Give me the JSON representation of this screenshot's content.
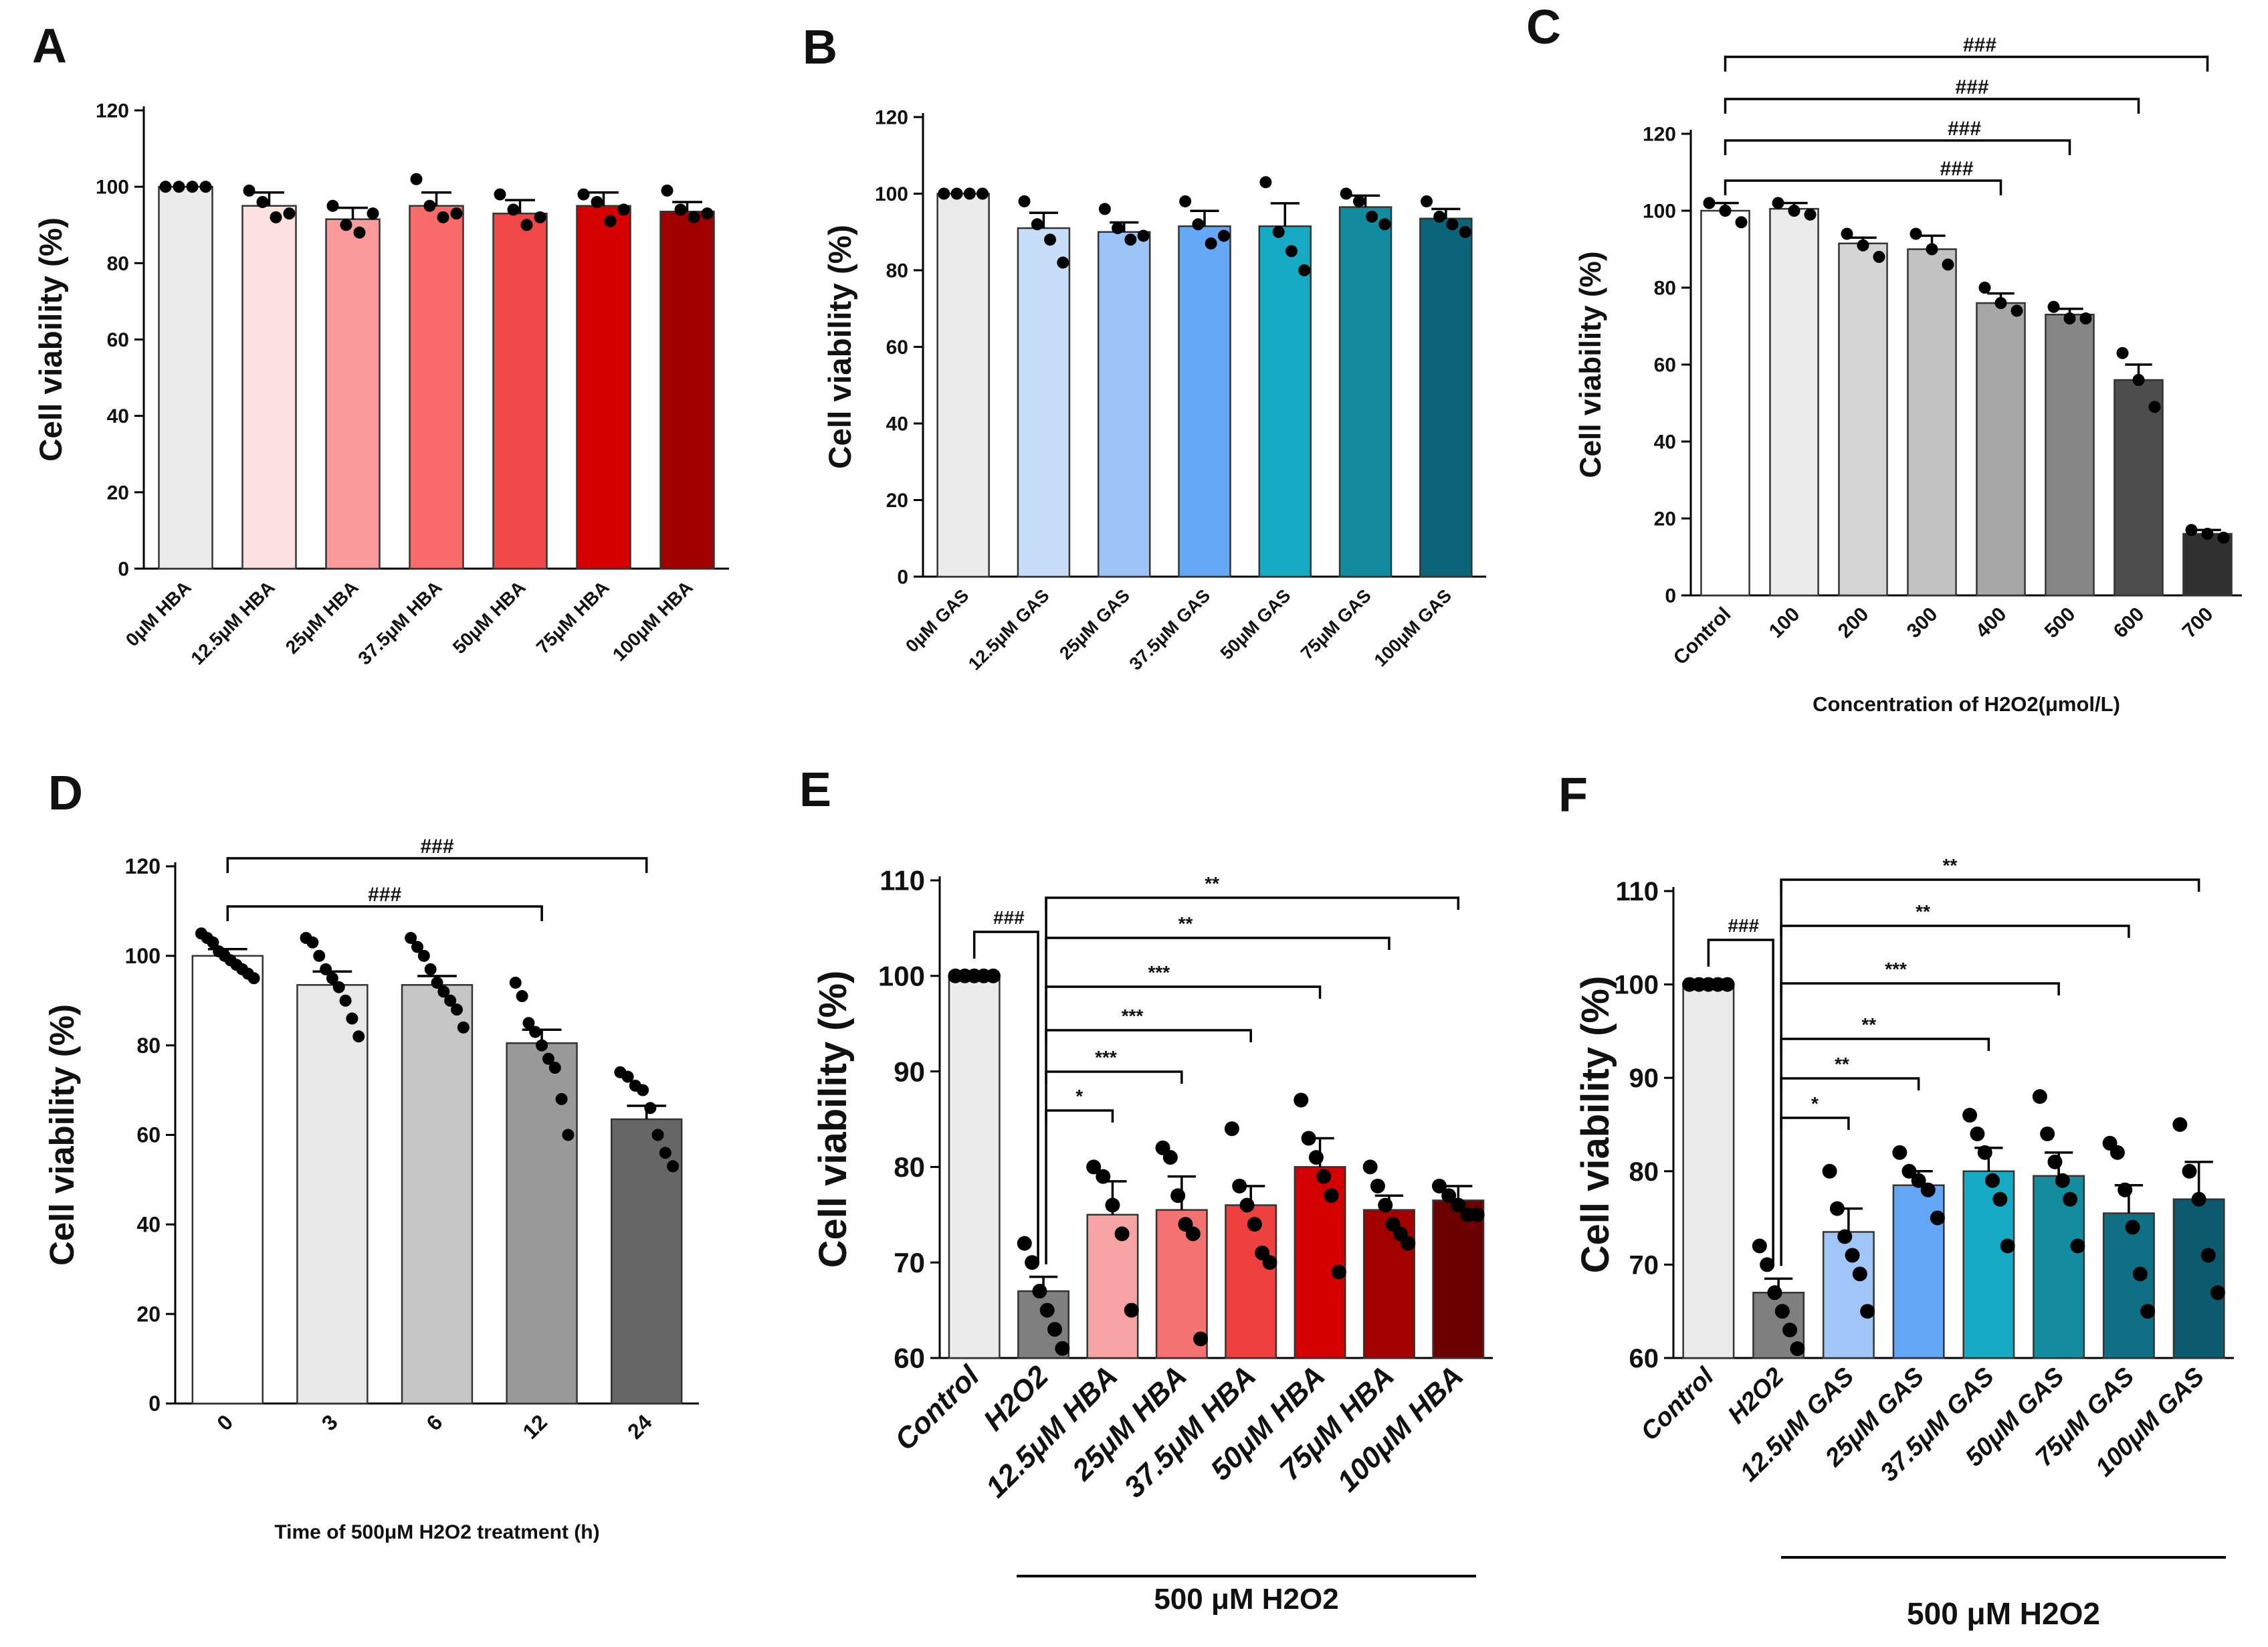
{
  "chart_data": [
    {
      "panel": "A",
      "type": "bar",
      "ylabel": "Cell viability (%)",
      "xlabel": "",
      "ylim": [
        0,
        120
      ],
      "yticks": [
        0,
        20,
        40,
        60,
        80,
        100,
        120
      ],
      "categories": [
        "0μM HBA",
        "12.5μM HBA",
        "25μM HBA",
        "37.5μM HBA",
        "50μM HBA",
        "75μM HBA",
        "100μM HBA"
      ],
      "values": [
        100,
        95,
        91.5,
        95,
        93,
        95,
        93.5
      ],
      "errors": [
        0,
        3.5,
        3,
        3.5,
        3.5,
        3.5,
        2.5
      ],
      "colors": [
        "#ebebeb",
        "#fde0e0",
        "#fa9a9a",
        "#f76b6b",
        "#f04848",
        "#d60000",
        "#a10000"
      ],
      "points": [
        [
          100,
          100,
          100,
          100
        ],
        [
          99,
          96,
          92,
          93
        ],
        [
          95,
          90,
          88,
          93
        ],
        [
          102,
          95,
          92,
          93
        ],
        [
          98,
          94,
          90,
          92
        ],
        [
          98,
          96,
          91,
          94
        ],
        [
          99,
          94,
          92,
          93
        ]
      ],
      "brackets": [],
      "group_label": ""
    },
    {
      "panel": "B",
      "type": "bar",
      "ylabel": "Cell viability (%)",
      "xlabel": "",
      "ylim": [
        0,
        120
      ],
      "yticks": [
        0,
        20,
        40,
        60,
        80,
        100,
        120
      ],
      "categories": [
        "0μM GAS",
        "12.5μM GAS",
        "25μM GAS",
        "37.5μM GAS",
        "50μM GAS",
        "75μM GAS",
        "100μM GAS"
      ],
      "values": [
        100,
        91,
        90,
        91.5,
        91.5,
        96.5,
        93.5
      ],
      "errors": [
        0,
        4,
        2.5,
        4,
        6,
        3,
        2.5
      ],
      "colors": [
        "#ebebeb",
        "#c8ddf8",
        "#9dc4f8",
        "#65a8f5",
        "#17aac4",
        "#138b9f",
        "#0c6478"
      ],
      "points": [
        [
          100,
          100,
          100,
          100
        ],
        [
          98,
          92,
          88,
          82
        ],
        [
          96,
          91,
          88,
          89
        ],
        [
          98,
          92,
          87,
          89
        ],
        [
          103,
          90,
          85,
          80
        ],
        [
          100,
          98,
          94,
          92
        ],
        [
          98,
          94,
          92,
          90
        ]
      ],
      "brackets": [],
      "group_label": ""
    },
    {
      "panel": "C",
      "type": "bar",
      "ylabel": "Cell viability (%)",
      "xlabel": "Concentration of H2O2(μmol/L)",
      "ylim": [
        0,
        120
      ],
      "yticks": [
        0,
        20,
        40,
        60,
        80,
        100,
        120
      ],
      "categories": [
        "Control",
        "100",
        "200",
        "300",
        "400",
        "500",
        "600",
        "700"
      ],
      "values": [
        100,
        100.5,
        91.5,
        90,
        76,
        73,
        56,
        16
      ],
      "errors": [
        2,
        1.5,
        1.5,
        3.5,
        2.5,
        1.5,
        4,
        1
      ],
      "colors": [
        "#ffffff",
        "#ebebeb",
        "#d5d5d5",
        "#c2c2c2",
        "#a6a6a6",
        "#858585",
        "#4d4d4d",
        "#303030"
      ],
      "points": [
        [
          102,
          100,
          97
        ],
        [
          102,
          100,
          99
        ],
        [
          94,
          91,
          88
        ],
        [
          94,
          90,
          86
        ],
        [
          80,
          76,
          74
        ],
        [
          75,
          72,
          72
        ],
        [
          63,
          56,
          49
        ],
        [
          17,
          16,
          15
        ]
      ],
      "brackets": [
        {
          "from": 0,
          "to": 4,
          "label": "###"
        },
        {
          "from": 0,
          "to": 5,
          "label": "###"
        },
        {
          "from": 0,
          "to": 6,
          "label": "###"
        },
        {
          "from": 0,
          "to": 7,
          "label": "###"
        }
      ],
      "group_label": ""
    },
    {
      "panel": "D",
      "type": "bar",
      "ylabel": "Cell viability (%)",
      "xlabel": "Time of 500μM H2O2 treatment (h)",
      "ylim": [
        0,
        120
      ],
      "yticks": [
        0,
        20,
        40,
        60,
        80,
        100,
        120
      ],
      "categories": [
        "0",
        "3",
        "6",
        "12",
        "24"
      ],
      "values": [
        100,
        93.5,
        93.5,
        80.5,
        63.5
      ],
      "errors": [
        1.5,
        3,
        2,
        3,
        3
      ],
      "colors": [
        "#ffffff",
        "#e8e8e8",
        "#c6c6c6",
        "#999999",
        "#666666"
      ],
      "points": [
        [
          105,
          104,
          103,
          101,
          100,
          99,
          98,
          97,
          96,
          95
        ],
        [
          104,
          103,
          100,
          97,
          95,
          93,
          90,
          86,
          82
        ],
        [
          104,
          102,
          100,
          97,
          94,
          92,
          90,
          88,
          84
        ],
        [
          94,
          91,
          85,
          83,
          80,
          77,
          75,
          68,
          60
        ],
        [
          74,
          73,
          71,
          70,
          66,
          60,
          56,
          53
        ]
      ],
      "brackets": [
        {
          "from": 0,
          "to": 3,
          "label": "###"
        },
        {
          "from": 0,
          "to": 4,
          "label": "###"
        }
      ],
      "group_label": ""
    },
    {
      "panel": "E",
      "type": "bar",
      "ylabel": "Cell viability (%)",
      "xlabel": "",
      "ylim": [
        60,
        110
      ],
      "yticks": [
        60,
        70,
        80,
        90,
        100,
        110
      ],
      "categories": [
        "Control",
        "H2O2",
        "12.5μM HBA",
        "25μM HBA",
        "37.5μM HBA",
        "50μM HBA",
        "75μM HBA",
        "100μM HBA"
      ],
      "values": [
        100,
        67,
        75,
        75.5,
        76,
        80,
        75.5,
        76.5
      ],
      "errors": [
        0,
        1.5,
        3.5,
        3.5,
        2,
        3,
        1.5,
        1.5
      ],
      "colors": [
        "#ebebeb",
        "#7f7f7f",
        "#f7a3a3",
        "#f47272",
        "#ef4040",
        "#d40000",
        "#a30000",
        "#6b0000"
      ],
      "points": [
        [
          100,
          100,
          100,
          100,
          100
        ],
        [
          72,
          70,
          67,
          65,
          63,
          61
        ],
        [
          80,
          79,
          76,
          73,
          65
        ],
        [
          82,
          81,
          77,
          74,
          73,
          62
        ],
        [
          84,
          78,
          76,
          74,
          71,
          70
        ],
        [
          87,
          83,
          81,
          79,
          77,
          69
        ],
        [
          80,
          78,
          76,
          74,
          73,
          72
        ],
        [
          78,
          77,
          76,
          75,
          75
        ]
      ],
      "brackets": [
        {
          "from": 0,
          "to": 1,
          "label": "###"
        },
        {
          "from": 1,
          "to": 2,
          "label": "*"
        },
        {
          "from": 1,
          "to": 3,
          "label": "***"
        },
        {
          "from": 1,
          "to": 4,
          "label": "***"
        },
        {
          "from": 1,
          "to": 5,
          "label": "***"
        },
        {
          "from": 1,
          "to": 6,
          "label": "**"
        },
        {
          "from": 1,
          "to": 7,
          "label": "**"
        }
      ],
      "group_label": "500 μM H2O2"
    },
    {
      "panel": "F",
      "type": "bar",
      "ylabel": "Cell viability (%)",
      "xlabel": "",
      "ylim": [
        60,
        110
      ],
      "yticks": [
        60,
        70,
        80,
        90,
        100,
        110
      ],
      "categories": [
        "Control",
        "H2O2",
        "12.5μM GAS",
        "25μM GAS",
        "37.5μM GAS",
        "50μM GAS",
        "75μM GAS",
        "100μM GAS"
      ],
      "values": [
        100,
        67,
        73.5,
        78.5,
        80,
        79.5,
        75.5,
        77
      ],
      "errors": [
        0,
        1.5,
        2.5,
        1.5,
        2.5,
        2.5,
        3,
        4
      ],
      "colors": [
        "#ebebeb",
        "#7f7f7f",
        "#9fc6f7",
        "#62a6f5",
        "#17aac4",
        "#138ca0",
        "#0e6f85",
        "#0b5a6e"
      ],
      "points": [
        [
          100,
          100,
          100,
          100,
          100
        ],
        [
          72,
          70,
          67,
          65,
          63,
          61
        ],
        [
          80,
          76,
          73,
          71,
          69,
          65
        ],
        [
          82,
          80,
          79,
          78,
          75
        ],
        [
          86,
          84,
          82,
          79,
          77,
          72
        ],
        [
          88,
          84,
          81,
          79,
          77,
          72
        ],
        [
          83,
          82,
          78,
          74,
          69,
          65
        ],
        [
          85,
          80,
          77,
          71,
          67
        ]
      ],
      "brackets": [
        {
          "from": 0,
          "to": 1,
          "label": "###"
        },
        {
          "from": 1,
          "to": 2,
          "label": "*"
        },
        {
          "from": 1,
          "to": 3,
          "label": "**"
        },
        {
          "from": 1,
          "to": 4,
          "label": "**"
        },
        {
          "from": 1,
          "to": 5,
          "label": "***"
        },
        {
          "from": 1,
          "to": 6,
          "label": "**"
        },
        {
          "from": 1,
          "to": 7,
          "label": "**"
        }
      ],
      "group_label": "500 μM H2O2"
    }
  ]
}
